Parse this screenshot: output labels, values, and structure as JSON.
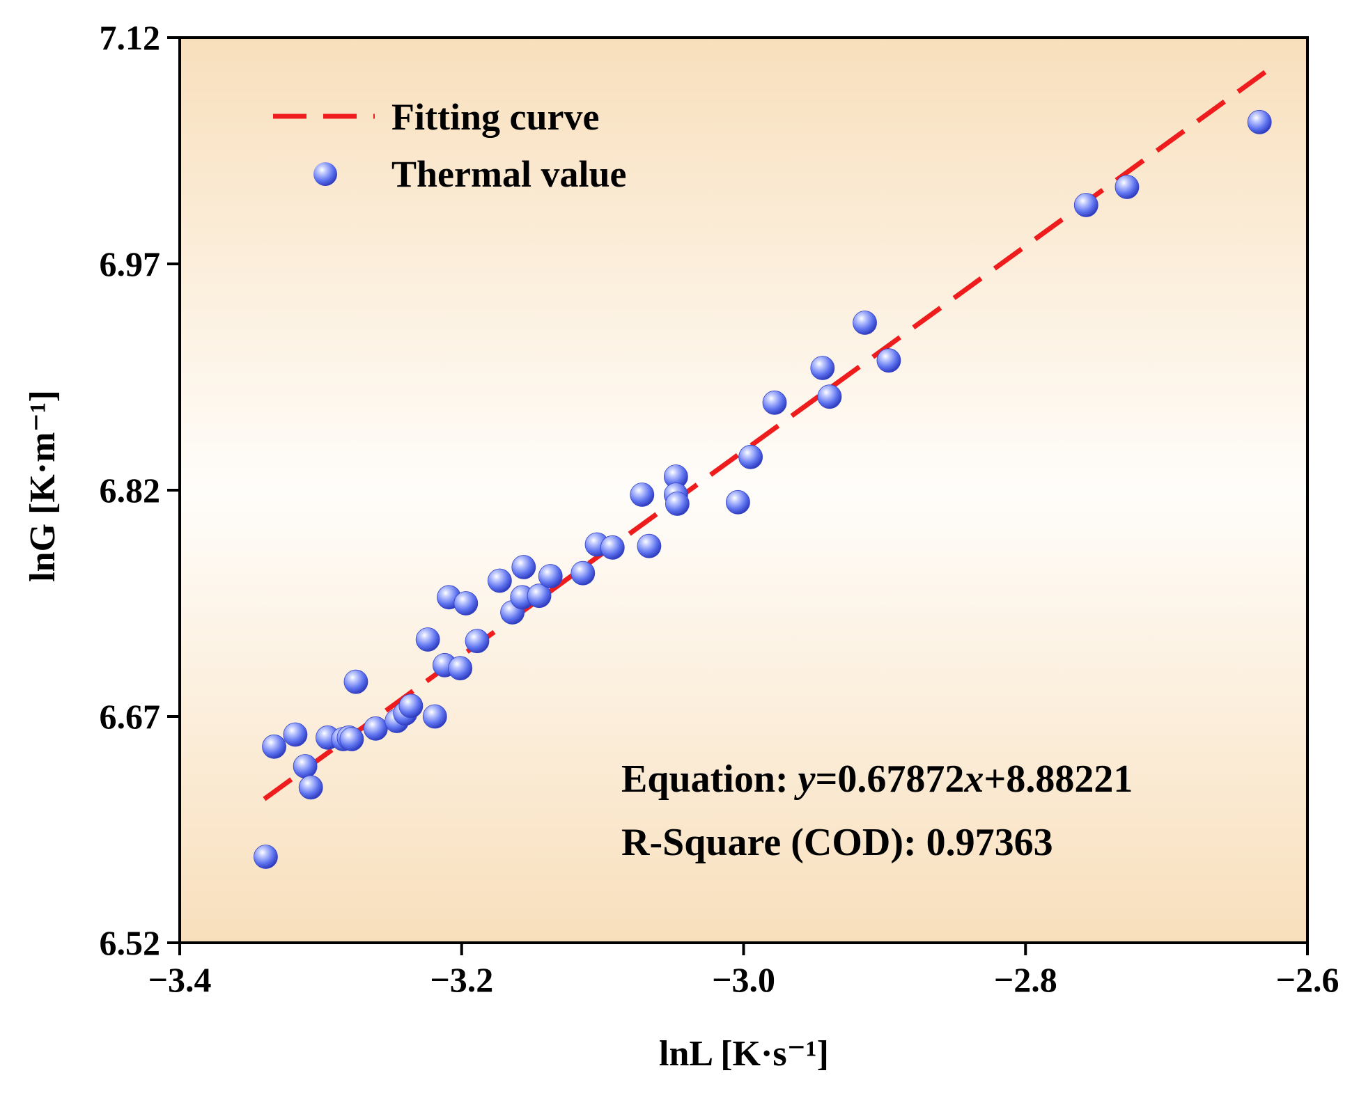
{
  "chart_data": {
    "type": "scatter",
    "xlabel": "lnL [K·s⁻¹]",
    "ylabel": "lnG [K·m⁻¹]",
    "xlim": [
      -3.4,
      -2.6
    ],
    "ylim": [
      6.52,
      7.12
    ],
    "xticks": [
      -3.4,
      -3.2,
      -3.0,
      -2.8,
      -2.6
    ],
    "xtick_labels": [
      "−3.4",
      "−3.2",
      "−3.0",
      "−2.8",
      "−2.6"
    ],
    "yticks": [
      6.52,
      6.67,
      6.82,
      6.97,
      7.12
    ],
    "ytick_labels": [
      "6.52",
      "6.67",
      "6.82",
      "6.97",
      "7.12"
    ],
    "grid": false,
    "legend_position": "top-left",
    "background_gradient": [
      "#f8dfbc",
      "#fffdfa",
      "#f8dfbc"
    ],
    "series": [
      {
        "name": "Fitting curve",
        "kind": "line",
        "style": "dashed",
        "color": "#ee1c1c",
        "slope": 0.67872,
        "intercept": 8.88221,
        "x_range": [
          -3.34,
          -2.63
        ]
      },
      {
        "name": "Thermal value",
        "kind": "scatter",
        "color": "#4a5ee8",
        "x": [
          -3.339,
          -3.333,
          -3.318,
          -3.311,
          -3.307,
          -3.295,
          -3.284,
          -3.28,
          -3.278,
          -3.275,
          -3.261,
          -3.246,
          -3.24,
          -3.236,
          -3.224,
          -3.219,
          -3.212,
          -3.209,
          -3.201,
          -3.197,
          -3.189,
          -3.173,
          -3.164,
          -3.157,
          -3.156,
          -3.145,
          -3.137,
          -3.114,
          -3.104,
          -3.093,
          -3.072,
          -3.067,
          -3.048,
          -3.048,
          -3.047,
          -3.004,
          -2.995,
          -2.978,
          -2.944,
          -2.939,
          -2.914,
          -2.897,
          -2.757,
          -2.728,
          -2.634
        ],
        "y": [
          6.577,
          6.65,
          6.658,
          6.637,
          6.623,
          6.656,
          6.655,
          6.656,
          6.655,
          6.693,
          6.662,
          6.667,
          6.672,
          6.677,
          6.721,
          6.67,
          6.704,
          6.749,
          6.702,
          6.745,
          6.72,
          6.76,
          6.739,
          6.749,
          6.769,
          6.75,
          6.763,
          6.765,
          6.784,
          6.782,
          6.817,
          6.783,
          6.829,
          6.817,
          6.811,
          6.812,
          6.842,
          6.878,
          6.901,
          6.882,
          6.931,
          6.906,
          7.009,
          7.021,
          7.064
        ]
      }
    ],
    "annotations": [
      {
        "prefix": "Equation: ",
        "var_y": "y",
        "mid": "=0.67872",
        "var_x": "x",
        "suffix": "+8.88221"
      },
      {
        "text": "R-Square (COD): 0.97363"
      }
    ]
  }
}
